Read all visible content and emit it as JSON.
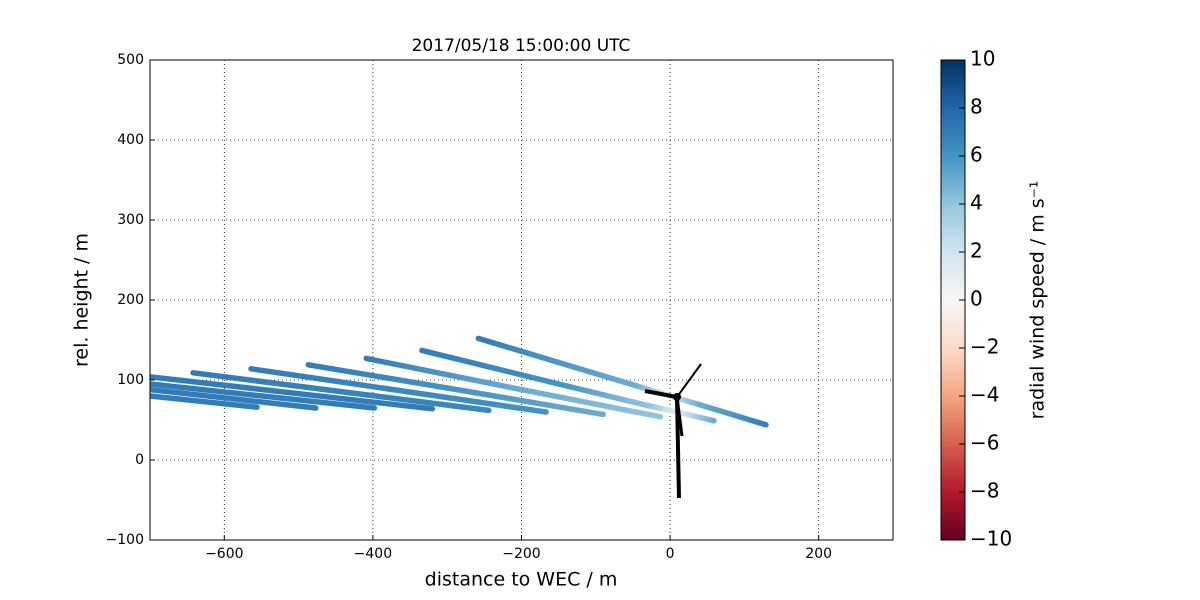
{
  "chart_data": {
    "type": "colored-lines",
    "title": "2017/05/18 15:00:00 UTC",
    "x_label": "distance to WEC / m",
    "y_label": "rel. height / m",
    "colorbar_label": "radial wind speed / m s⁻¹",
    "xlim": [
      -700,
      300
    ],
    "xticks": [
      {
        "value": -600,
        "label": "−600"
      },
      {
        "value": -400,
        "label": "−400"
      },
      {
        "value": -200,
        "label": "−200"
      },
      0,
      200
    ],
    "ylim": [
      -100,
      500
    ],
    "yticks": [
      {
        "value": -100,
        "label": "−100"
      },
      0,
      100,
      200,
      300,
      400,
      500
    ],
    "grid": true,
    "clim": [
      -10,
      10
    ],
    "cticks": [
      {
        "value": -10,
        "label": "−10"
      },
      {
        "value": -8,
        "label": "−8"
      },
      {
        "value": -6,
        "label": "−6"
      },
      {
        "value": -4,
        "label": "−4"
      },
      {
        "value": -2,
        "label": "−2"
      },
      0,
      2,
      4,
      6,
      8,
      10
    ],
    "colormap": [
      "#67001f",
      "#b2182b",
      "#d6604d",
      "#f4a582",
      "#fddbc7",
      "#f7f7f7",
      "#d1e5f0",
      "#92c5de",
      "#4393c3",
      "#2166ac",
      "#053061"
    ],
    "series": [
      {
        "x": [
          -258,
          -50,
          0,
          40,
          129
        ],
        "y": [
          152,
          94,
          80,
          69,
          44
        ],
        "speed": [
          7,
          5,
          2,
          5,
          7
        ]
      },
      {
        "x": [
          -334,
          -150,
          -30,
          10,
          59
        ],
        "y": [
          137,
          95,
          68,
          60,
          49
        ],
        "speed": [
          7,
          6,
          4,
          1,
          5
        ]
      },
      {
        "x": [
          -409,
          -200,
          -13
        ],
        "y": [
          127,
          88,
          54
        ],
        "speed": [
          7,
          5,
          4
        ]
      },
      {
        "x": [
          -487,
          -300,
          -90
        ],
        "y": [
          119,
          90,
          57
        ],
        "speed": [
          7,
          6,
          5
        ]
      },
      {
        "x": [
          -564,
          -167
        ],
        "y": [
          114,
          60
        ],
        "speed": [
          7,
          6
        ]
      },
      {
        "x": [
          -642,
          -244
        ],
        "y": [
          109,
          62
        ],
        "speed": [
          7,
          6.5
        ]
      },
      {
        "x": [
          -700,
          -320
        ],
        "y": [
          104,
          64
        ],
        "speed": [
          7,
          7
        ]
      },
      {
        "x": [
          -700,
          -398
        ],
        "y": [
          95,
          65
        ],
        "speed": [
          7,
          7
        ]
      },
      {
        "x": [
          -700,
          -477
        ],
        "y": [
          88,
          65
        ],
        "speed": [
          7,
          7
        ]
      },
      {
        "x": [
          -700,
          -556
        ],
        "y": [
          80,
          66
        ],
        "speed": [
          7,
          7
        ]
      }
    ]
  }
}
